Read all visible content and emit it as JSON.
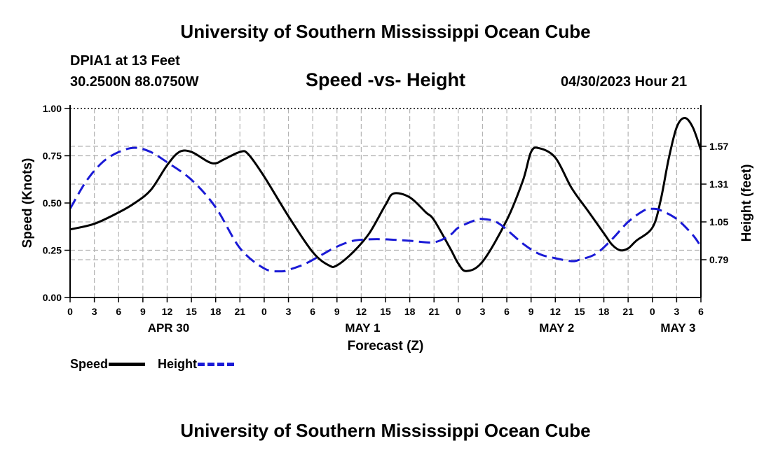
{
  "header": {
    "title": "University of Southern Mississippi Ocean Cube",
    "station": "DPIA1 at 13 Feet",
    "location": "30.2500N  88.0750W",
    "datetime": "04/30/2023 Hour 21"
  },
  "footer": {
    "title": "University of Southern Mississippi Ocean Cube"
  },
  "colors": {
    "speed": "#000000",
    "height": "#1a1ad6",
    "grid": "#b4b4b4"
  },
  "legend": {
    "speed": "Speed",
    "height": "Height"
  },
  "chart_data": {
    "type": "line",
    "title": "Speed -vs- Height",
    "xlabel": "Forecast (Z)",
    "ylabel": "Speed (Knots)",
    "y2label": "Height (feet)",
    "xlim": [
      0,
      78
    ],
    "ylim": [
      0,
      1
    ],
    "y2lim": [
      0.53,
      1.83
    ],
    "y_ticks": [
      0,
      0.25,
      0.5,
      0.75,
      1
    ],
    "y_tick_labels": [
      "0.00",
      "0.25",
      "0.50",
      "0.75",
      "1.00"
    ],
    "y2_ticks": [
      0.79,
      1.05,
      1.31,
      1.57
    ],
    "y2_tick_labels": [
      "0.79",
      "1.05",
      "1.31",
      "1.57"
    ],
    "x_ticks": [
      0,
      3,
      6,
      9,
      12,
      15,
      18,
      21,
      24,
      27,
      30,
      33,
      36,
      39,
      42,
      45,
      48,
      51,
      54,
      57,
      60,
      63,
      66,
      69,
      72,
      75,
      78
    ],
    "x_tick_labels": [
      "0",
      "3",
      "6",
      "9",
      "12",
      "15",
      "18",
      "21",
      "0",
      "3",
      "6",
      "9",
      "12",
      "15",
      "18",
      "21",
      "0",
      "3",
      "6",
      "9",
      "12",
      "15",
      "18",
      "21",
      "0",
      "3",
      "6"
    ],
    "day_labels": [
      {
        "hour": 12,
        "label": "APR 30"
      },
      {
        "hour": 36,
        "label": "MAY 1"
      },
      {
        "hour": 60,
        "label": "MAY 2"
      },
      {
        "hour": 75,
        "label": "MAY 3"
      }
    ],
    "series": [
      {
        "name": "Speed",
        "axis": "left",
        "style": "solid",
        "x": [
          0,
          3,
          6,
          8,
          10,
          12,
          13.5,
          15,
          17,
          18,
          19,
          21,
          22,
          24,
          27,
          30,
          32,
          33,
          35,
          37,
          39,
          40,
          42,
          44,
          45,
          47,
          48,
          49,
          51,
          54,
          56,
          57,
          58,
          60,
          62,
          64,
          66,
          67,
          68,
          69,
          70,
          72,
          73,
          74,
          75,
          76,
          77,
          78
        ],
        "values": [
          0.36,
          0.39,
          0.45,
          0.5,
          0.57,
          0.7,
          0.77,
          0.77,
          0.72,
          0.71,
          0.73,
          0.77,
          0.76,
          0.64,
          0.43,
          0.24,
          0.17,
          0.17,
          0.24,
          0.34,
          0.49,
          0.55,
          0.53,
          0.45,
          0.41,
          0.26,
          0.18,
          0.14,
          0.19,
          0.41,
          0.62,
          0.77,
          0.79,
          0.74,
          0.58,
          0.46,
          0.34,
          0.28,
          0.25,
          0.26,
          0.3,
          0.37,
          0.51,
          0.73,
          0.9,
          0.95,
          0.9,
          0.78
        ]
      },
      {
        "name": "Height",
        "axis": "right",
        "style": "dashed",
        "x": [
          0,
          2,
          4,
          6,
          8,
          10,
          12,
          15,
          18,
          21,
          24,
          26,
          27,
          29,
          31,
          33,
          35,
          37,
          39,
          42,
          45,
          47,
          48,
          50,
          51,
          53,
          56,
          58,
          60,
          62,
          63,
          65,
          67,
          69,
          71,
          72,
          73,
          75,
          77,
          78
        ],
        "values": [
          1.14,
          1.33,
          1.46,
          1.53,
          1.56,
          1.53,
          1.46,
          1.34,
          1.15,
          0.87,
          0.73,
          0.71,
          0.72,
          0.76,
          0.82,
          0.88,
          0.92,
          0.93,
          0.93,
          0.92,
          0.91,
          0.96,
          1.01,
          1.06,
          1.07,
          1.04,
          0.9,
          0.83,
          0.8,
          0.78,
          0.79,
          0.83,
          0.93,
          1.05,
          1.13,
          1.14,
          1.13,
          1.07,
          0.96,
          0.88
        ]
      }
    ]
  }
}
